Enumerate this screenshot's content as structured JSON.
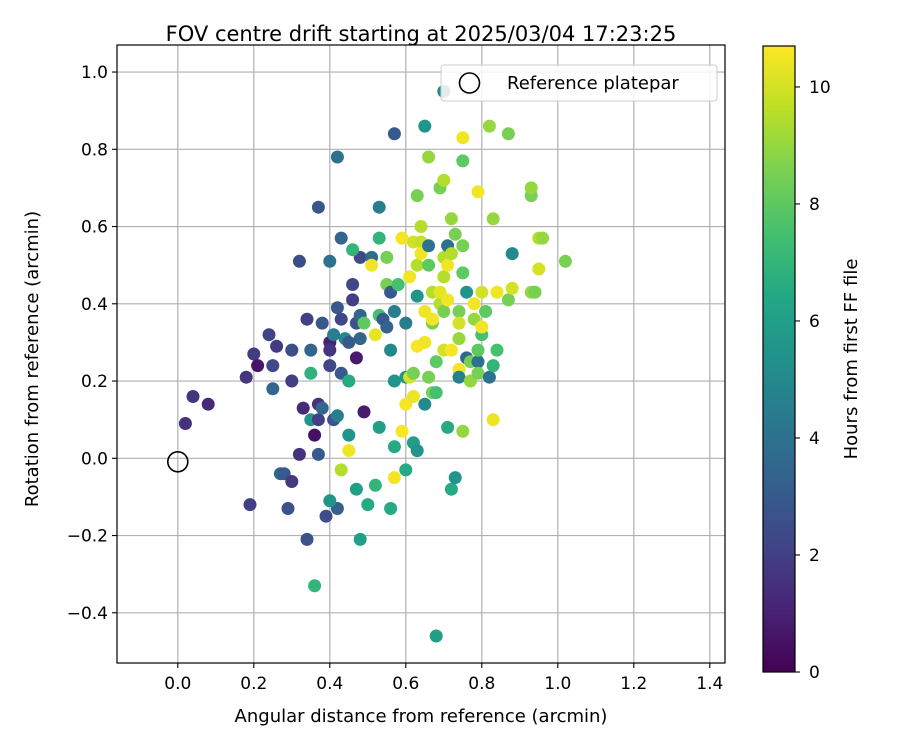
{
  "chart_data": {
    "type": "scatter",
    "title": "FOV centre drift starting at 2025/03/04 17:23:25",
    "xlabel": "Angular distance from reference (arcmin)",
    "ylabel": "Rotation from reference (arcmin)",
    "xlim": [
      -0.16,
      1.44
    ],
    "ylim": [
      -0.53,
      1.07
    ],
    "xticks": [
      0.0,
      0.2,
      0.4,
      0.6,
      0.8,
      1.0,
      1.2,
      1.4
    ],
    "xtick_labels": [
      "0.0",
      "0.2",
      "0.4",
      "0.6",
      "0.8",
      "1.0",
      "1.2",
      "1.4"
    ],
    "yticks": [
      -0.4,
      -0.2,
      0.0,
      0.2,
      0.4,
      0.6,
      0.8,
      1.0
    ],
    "ytick_labels": [
      "−0.4",
      "−0.2",
      "0.0",
      "0.2",
      "0.4",
      "0.6",
      "0.8",
      "1.0"
    ],
    "grid": true,
    "legend": {
      "position": "top-right",
      "entries": [
        {
          "label": "Reference platepar",
          "marker": "open-circle"
        }
      ]
    },
    "reference_point": {
      "x": 0.0,
      "y": 0.0
    },
    "colorbar": {
      "label": "Hours from first FF file",
      "colormap": "viridis",
      "range": [
        0,
        10.7
      ],
      "ticks": [
        0,
        2,
        4,
        6,
        8,
        10
      ],
      "tick_labels": [
        "0",
        "2",
        "4",
        "6",
        "8",
        "10"
      ]
    },
    "points": [
      {
        "x": 0.02,
        "y": 0.09,
        "c": 1.5
      },
      {
        "x": 0.04,
        "y": 0.16,
        "c": 1.6
      },
      {
        "x": 0.08,
        "y": 0.14,
        "c": 1.3
      },
      {
        "x": 0.18,
        "y": 0.21,
        "c": 1.7
      },
      {
        "x": 0.2,
        "y": 0.27,
        "c": 1.9
      },
      {
        "x": 0.21,
        "y": 0.24,
        "c": 0.6
      },
      {
        "x": 0.19,
        "y": -0.12,
        "c": 2.0
      },
      {
        "x": 0.24,
        "y": 0.32,
        "c": 2.1
      },
      {
        "x": 0.26,
        "y": 0.29,
        "c": 1.8
      },
      {
        "x": 0.25,
        "y": 0.24,
        "c": 2.3
      },
      {
        "x": 0.25,
        "y": 0.18,
        "c": 3.5
      },
      {
        "x": 0.27,
        "y": -0.04,
        "c": 3.5
      },
      {
        "x": 0.28,
        "y": -0.04,
        "c": 3.0
      },
      {
        "x": 0.29,
        "y": -0.13,
        "c": 2.6
      },
      {
        "x": 0.3,
        "y": -0.06,
        "c": 1.8
      },
      {
        "x": 0.3,
        "y": 0.2,
        "c": 1.9
      },
      {
        "x": 0.3,
        "y": 0.28,
        "c": 2.5
      },
      {
        "x": 0.32,
        "y": 0.01,
        "c": 1.5
      },
      {
        "x": 0.33,
        "y": 0.13,
        "c": 1.3
      },
      {
        "x": 0.32,
        "y": 0.51,
        "c": 2.5
      },
      {
        "x": 0.34,
        "y": 0.36,
        "c": 2.0
      },
      {
        "x": 0.34,
        "y": -0.21,
        "c": 2.7
      },
      {
        "x": 0.35,
        "y": 0.28,
        "c": 3.5
      },
      {
        "x": 0.35,
        "y": 0.22,
        "c": 6.9
      },
      {
        "x": 0.35,
        "y": 0.1,
        "c": 5.5
      },
      {
        "x": 0.36,
        "y": 0.06,
        "c": 0.5
      },
      {
        "x": 0.37,
        "y": 0.14,
        "c": 1.5
      },
      {
        "x": 0.37,
        "y": 0.1,
        "c": 2.0
      },
      {
        "x": 0.37,
        "y": 0.01,
        "c": 3.0
      },
      {
        "x": 0.38,
        "y": 0.13,
        "c": 3.5
      },
      {
        "x": 0.38,
        "y": 0.35,
        "c": 3.0
      },
      {
        "x": 0.39,
        "y": -0.15,
        "c": 2.5
      },
      {
        "x": 0.4,
        "y": 0.3,
        "c": 1.0
      },
      {
        "x": 0.4,
        "y": 0.28,
        "c": 1.6
      },
      {
        "x": 0.4,
        "y": 0.24,
        "c": 2.2
      },
      {
        "x": 0.41,
        "y": 0.32,
        "c": 4.5
      },
      {
        "x": 0.41,
        "y": 0.1,
        "c": 2.7
      },
      {
        "x": 0.42,
        "y": 0.11,
        "c": 4.5
      },
      {
        "x": 0.42,
        "y": 0.39,
        "c": 3.0
      },
      {
        "x": 0.43,
        "y": 0.36,
        "c": 2.3
      },
      {
        "x": 0.43,
        "y": 0.22,
        "c": 3.0
      },
      {
        "x": 0.43,
        "y": 0.57,
        "c": 3.5
      },
      {
        "x": 0.44,
        "y": 0.31,
        "c": 5.0
      },
      {
        "x": 0.45,
        "y": 0.3,
        "c": 3.0
      },
      {
        "x": 0.45,
        "y": 0.2,
        "c": 6.5
      },
      {
        "x": 0.45,
        "y": 0.06,
        "c": 5.5
      },
      {
        "x": 0.46,
        "y": 0.41,
        "c": 2.0
      },
      {
        "x": 0.46,
        "y": 0.45,
        "c": 2.3
      },
      {
        "x": 0.47,
        "y": 0.35,
        "c": 2.7
      },
      {
        "x": 0.47,
        "y": 0.26,
        "c": 0.8
      },
      {
        "x": 0.48,
        "y": 0.52,
        "c": 2.3
      },
      {
        "x": 0.48,
        "y": 0.37,
        "c": 3.5
      },
      {
        "x": 0.48,
        "y": 0.31,
        "c": 3.5
      },
      {
        "x": 0.49,
        "y": 0.35,
        "c": 8.0
      },
      {
        "x": 0.49,
        "y": 0.12,
        "c": 0.8
      },
      {
        "x": 0.42,
        "y": 0.78,
        "c": 4.0
      },
      {
        "x": 0.46,
        "y": 0.54,
        "c": 7.0
      },
      {
        "x": 0.37,
        "y": 0.65,
        "c": 2.8
      },
      {
        "x": 0.4,
        "y": 0.51,
        "c": 4.0
      },
      {
        "x": 0.42,
        "y": -0.13,
        "c": 3.3
      },
      {
        "x": 0.43,
        "y": -0.03,
        "c": 9.5
      },
      {
        "x": 0.45,
        "y": 0.02,
        "c": 10.5
      },
      {
        "x": 0.4,
        "y": -0.11,
        "c": 5.5
      },
      {
        "x": 0.36,
        "y": -0.33,
        "c": 7.0
      },
      {
        "x": 0.47,
        "y": -0.08,
        "c": 6.0
      },
      {
        "x": 0.48,
        "y": -0.21,
        "c": 6.0
      },
      {
        "x": 0.5,
        "y": -0.12,
        "c": 6.5
      },
      {
        "x": 0.51,
        "y": 0.52,
        "c": 3.7
      },
      {
        "x": 0.51,
        "y": 0.5,
        "c": 10.5
      },
      {
        "x": 0.52,
        "y": -0.07,
        "c": 7.0
      },
      {
        "x": 0.52,
        "y": 0.32,
        "c": 10.3
      },
      {
        "x": 0.53,
        "y": 0.37,
        "c": 7.5
      },
      {
        "x": 0.53,
        "y": 0.08,
        "c": 6.0
      },
      {
        "x": 0.53,
        "y": 0.65,
        "c": 4.5
      },
      {
        "x": 0.53,
        "y": 0.57,
        "c": 7.0
      },
      {
        "x": 0.54,
        "y": 0.36,
        "c": 3.0
      },
      {
        "x": 0.55,
        "y": 0.45,
        "c": 8.5
      },
      {
        "x": 0.55,
        "y": 0.52,
        "c": 8.5
      },
      {
        "x": 0.55,
        "y": 0.34,
        "c": 3.3
      },
      {
        "x": 0.56,
        "y": -0.13,
        "c": 6.5
      },
      {
        "x": 0.56,
        "y": 0.43,
        "c": 3.0
      },
      {
        "x": 0.56,
        "y": 0.28,
        "c": 5.0
      },
      {
        "x": 0.57,
        "y": 0.03,
        "c": 6.5
      },
      {
        "x": 0.57,
        "y": -0.05,
        "c": 10.5
      },
      {
        "x": 0.57,
        "y": 0.2,
        "c": 5.5
      },
      {
        "x": 0.57,
        "y": 0.38,
        "c": 4.5
      },
      {
        "x": 0.57,
        "y": 0.84,
        "c": 3.0
      },
      {
        "x": 0.58,
        "y": 0.45,
        "c": 7.5
      },
      {
        "x": 0.59,
        "y": 0.07,
        "c": 10.6
      },
      {
        "x": 0.59,
        "y": 0.57,
        "c": 10.5
      },
      {
        "x": 0.6,
        "y": -0.03,
        "c": 6.5
      },
      {
        "x": 0.6,
        "y": 0.21,
        "c": 5.5
      },
      {
        "x": 0.6,
        "y": 0.35,
        "c": 4.5
      },
      {
        "x": 0.6,
        "y": 0.14,
        "c": 10.6
      },
      {
        "x": 0.61,
        "y": 0.21,
        "c": 10.0
      },
      {
        "x": 0.61,
        "y": 0.47,
        "c": 10.5
      },
      {
        "x": 0.62,
        "y": 0.16,
        "c": 10.4
      },
      {
        "x": 0.62,
        "y": 0.22,
        "c": 8.5
      },
      {
        "x": 0.62,
        "y": 0.04,
        "c": 6.0
      },
      {
        "x": 0.62,
        "y": 0.56,
        "c": 10.0
      },
      {
        "x": 0.63,
        "y": 0.42,
        "c": 5.5
      },
      {
        "x": 0.63,
        "y": 0.29,
        "c": 10.6
      },
      {
        "x": 0.63,
        "y": 0.5,
        "c": 9.5
      },
      {
        "x": 0.63,
        "y": 0.02,
        "c": 5.5
      },
      {
        "x": 0.63,
        "y": 0.68,
        "c": 8.5
      },
      {
        "x": 0.64,
        "y": 0.56,
        "c": 9.8
      },
      {
        "x": 0.64,
        "y": 0.6,
        "c": 9.5
      },
      {
        "x": 0.64,
        "y": 0.53,
        "c": 10.5
      },
      {
        "x": 0.65,
        "y": 0.38,
        "c": 10.5
      },
      {
        "x": 0.65,
        "y": 0.3,
        "c": 10.5
      },
      {
        "x": 0.65,
        "y": 0.14,
        "c": 5.0
      },
      {
        "x": 0.65,
        "y": 0.86,
        "c": 5.5
      },
      {
        "x": 0.66,
        "y": 0.5,
        "c": 8.0
      },
      {
        "x": 0.66,
        "y": 0.21,
        "c": 8.5
      },
      {
        "x": 0.66,
        "y": 0.78,
        "c": 9.0
      },
      {
        "x": 0.66,
        "y": 0.55,
        "c": 4.0
      },
      {
        "x": 0.67,
        "y": 0.43,
        "c": 9.5
      },
      {
        "x": 0.67,
        "y": 0.35,
        "c": 8.5
      },
      {
        "x": 0.67,
        "y": 0.17,
        "c": 8.5
      },
      {
        "x": 0.67,
        "y": 0.36,
        "c": 10.5
      },
      {
        "x": 0.68,
        "y": 0.17,
        "c": 7.5
      },
      {
        "x": 0.68,
        "y": 0.25,
        "c": 8.0
      },
      {
        "x": 0.68,
        "y": -0.46,
        "c": 6.0
      },
      {
        "x": 0.69,
        "y": 0.4,
        "c": 9.5
      },
      {
        "x": 0.69,
        "y": 0.43,
        "c": 10.3
      },
      {
        "x": 0.69,
        "y": 0.7,
        "c": 8.5
      },
      {
        "x": 0.7,
        "y": 0.52,
        "c": 9.5
      },
      {
        "x": 0.7,
        "y": 0.38,
        "c": 8.5
      },
      {
        "x": 0.7,
        "y": 0.28,
        "c": 10.0
      },
      {
        "x": 0.7,
        "y": 0.72,
        "c": 9.5
      },
      {
        "x": 0.7,
        "y": 0.47,
        "c": 9.5
      },
      {
        "x": 0.7,
        "y": 0.95,
        "c": 5.0
      },
      {
        "x": 0.71,
        "y": 0.08,
        "c": 6.5
      },
      {
        "x": 0.71,
        "y": 0.55,
        "c": 4.0
      },
      {
        "x": 0.71,
        "y": 0.41,
        "c": 10.5
      },
      {
        "x": 0.71,
        "y": 0.5,
        "c": 10.5
      },
      {
        "x": 0.72,
        "y": 0.62,
        "c": 9.0
      },
      {
        "x": 0.72,
        "y": 0.53,
        "c": 9.5
      },
      {
        "x": 0.72,
        "y": 0.28,
        "c": 10.6
      },
      {
        "x": 0.72,
        "y": -0.08,
        "c": 6.5
      },
      {
        "x": 0.73,
        "y": -0.05,
        "c": 5.5
      },
      {
        "x": 0.73,
        "y": 0.58,
        "c": 8.5
      },
      {
        "x": 0.74,
        "y": 0.38,
        "c": 8.5
      },
      {
        "x": 0.74,
        "y": 0.23,
        "c": 10.5
      },
      {
        "x": 0.74,
        "y": 0.21,
        "c": 4.5
      },
      {
        "x": 0.74,
        "y": 0.31,
        "c": 9.0
      },
      {
        "x": 0.74,
        "y": 0.35,
        "c": 10.0
      },
      {
        "x": 0.75,
        "y": 0.55,
        "c": 8.5
      },
      {
        "x": 0.75,
        "y": 0.48,
        "c": 8.0
      },
      {
        "x": 0.75,
        "y": 0.07,
        "c": 9.0
      },
      {
        "x": 0.75,
        "y": 0.77,
        "c": 8.0
      },
      {
        "x": 0.75,
        "y": 0.83,
        "c": 10.5
      },
      {
        "x": 0.76,
        "y": 0.43,
        "c": 5.5
      },
      {
        "x": 0.76,
        "y": 0.26,
        "c": 3.5
      },
      {
        "x": 0.77,
        "y": 0.2,
        "c": 9.0
      },
      {
        "x": 0.77,
        "y": 0.25,
        "c": 8.5
      },
      {
        "x": 0.78,
        "y": 0.4,
        "c": 10.5
      },
      {
        "x": 0.78,
        "y": 0.36,
        "c": 9.0
      },
      {
        "x": 0.79,
        "y": 0.25,
        "c": 4.0
      },
      {
        "x": 0.79,
        "y": 0.28,
        "c": 8.0
      },
      {
        "x": 0.79,
        "y": 0.22,
        "c": 8.5
      },
      {
        "x": 0.79,
        "y": 0.69,
        "c": 10.5
      },
      {
        "x": 0.8,
        "y": 0.43,
        "c": 10.0
      },
      {
        "x": 0.8,
        "y": 0.32,
        "c": 7.5
      },
      {
        "x": 0.8,
        "y": 0.34,
        "c": 10.5
      },
      {
        "x": 0.81,
        "y": 0.38,
        "c": 8.0
      },
      {
        "x": 0.82,
        "y": 0.21,
        "c": 4.0
      },
      {
        "x": 0.82,
        "y": 0.86,
        "c": 9.0
      },
      {
        "x": 0.83,
        "y": 0.62,
        "c": 9.0
      },
      {
        "x": 0.83,
        "y": 0.24,
        "c": 7.0
      },
      {
        "x": 0.83,
        "y": 0.1,
        "c": 10.4
      },
      {
        "x": 0.84,
        "y": 0.43,
        "c": 10.5
      },
      {
        "x": 0.84,
        "y": 0.28,
        "c": 7.5
      },
      {
        "x": 0.87,
        "y": 0.84,
        "c": 8.5
      },
      {
        "x": 0.87,
        "y": 0.41,
        "c": 8.5
      },
      {
        "x": 0.88,
        "y": 0.44,
        "c": 10.0
      },
      {
        "x": 0.88,
        "y": 0.53,
        "c": 5.0
      },
      {
        "x": 0.93,
        "y": 0.68,
        "c": 8.5
      },
      {
        "x": 0.93,
        "y": 0.43,
        "c": 9.0
      },
      {
        "x": 0.93,
        "y": 0.7,
        "c": 9.0
      },
      {
        "x": 0.94,
        "y": 0.43,
        "c": 8.5
      },
      {
        "x": 0.95,
        "y": 0.49,
        "c": 10.0
      },
      {
        "x": 0.95,
        "y": 0.57,
        "c": 9.5
      },
      {
        "x": 0.96,
        "y": 0.57,
        "c": 9.0
      },
      {
        "x": 1.02,
        "y": 0.51,
        "c": 8.5
      }
    ]
  }
}
